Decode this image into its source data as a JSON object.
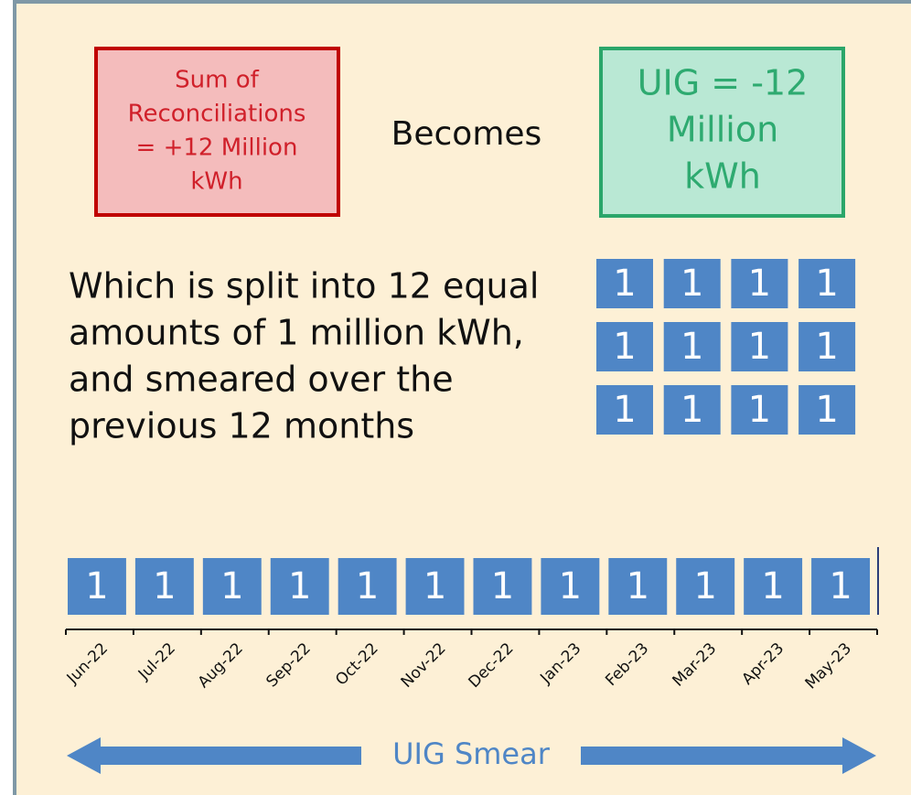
{
  "left_box": {
    "lines": [
      "Sum of",
      "Reconciliations",
      "= +12 Million",
      "kWh"
    ]
  },
  "connector": "Becomes",
  "right_box": {
    "lines": [
      "UIG = -12",
      "Million",
      "kWh"
    ]
  },
  "description": [
    "Which is split into 12 equal",
    "amounts of 1 million kWh,",
    "and smeared over the",
    "previous 12 months"
  ],
  "grid": [
    [
      "1",
      "1",
      "1",
      "1"
    ],
    [
      "1",
      "1",
      "1",
      "1"
    ],
    [
      "1",
      "1",
      "1",
      "1"
    ]
  ],
  "timeline": {
    "values": [
      "1",
      "1",
      "1",
      "1",
      "1",
      "1",
      "1",
      "1",
      "1",
      "1",
      "1",
      "1"
    ],
    "months": [
      "Jun-22",
      "Jul-22",
      "Aug-22",
      "Sep-22",
      "Oct-22",
      "Nov-22",
      "Dec-22",
      "Jan-23",
      "Feb-23",
      "Mar-23",
      "Apr-23",
      "May-23"
    ]
  },
  "arrow_label": "UIG Smear"
}
